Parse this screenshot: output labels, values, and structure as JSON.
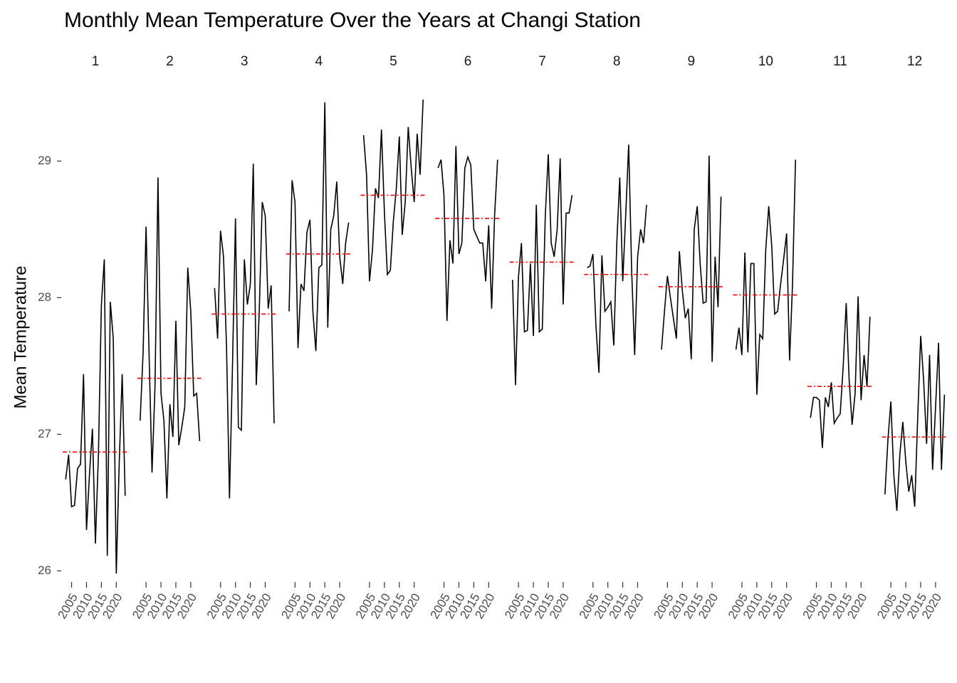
{
  "chart_data": {
    "type": "line",
    "title": "Monthly Mean Temperature Over the Years at Changi Station",
    "y_label": "Mean Temperature",
    "x": [
      2003,
      2004,
      2005,
      2006,
      2007,
      2008,
      2009,
      2010,
      2011,
      2012,
      2013,
      2014,
      2015,
      2016,
      2017,
      2018,
      2019,
      2020,
      2021,
      2022,
      2023
    ],
    "xlim": [
      2002,
      2024
    ],
    "xticks": [
      2005,
      2010,
      2015,
      2020
    ],
    "ylim": [
      25.95,
      29.45
    ],
    "yticks": [
      26,
      27,
      28,
      29
    ],
    "line_color": "#000000",
    "mean_color": "#ff0000",
    "facets": [
      {
        "label": "1",
        "mean": 26.87,
        "values": [
          26.67,
          26.85,
          26.47,
          26.48,
          26.75,
          26.78,
          27.44,
          26.3,
          26.7,
          27.04,
          26.2,
          26.85,
          27.95,
          28.28,
          26.11,
          27.97,
          27.7,
          25.98,
          26.8,
          27.44,
          26.55
        ]
      },
      {
        "label": "2",
        "mean": 27.41,
        "values": [
          27.1,
          27.6,
          28.52,
          27.6,
          26.72,
          27.35,
          28.88,
          27.3,
          27.1,
          26.53,
          27.22,
          26.98,
          27.83,
          26.92,
          27.05,
          27.2,
          28.22,
          27.9,
          27.28,
          27.3,
          26.95
        ]
      },
      {
        "label": "3",
        "mean": 27.88,
        "values": [
          28.07,
          27.7,
          28.49,
          28.3,
          27.65,
          26.53,
          27.5,
          28.58,
          27.05,
          27.03,
          28.28,
          27.95,
          28.1,
          28.98,
          27.36,
          27.9,
          28.7,
          28.6,
          27.92,
          28.09,
          27.08
        ]
      },
      {
        "label": "4",
        "mean": 28.32,
        "values": [
          27.9,
          28.86,
          28.7,
          27.63,
          28.1,
          28.05,
          28.48,
          28.57,
          27.9,
          27.61,
          28.22,
          28.24,
          29.43,
          27.78,
          28.5,
          28.6,
          28.85,
          28.3,
          28.1,
          28.4,
          28.55
        ]
      },
      {
        "label": "5",
        "mean": 28.75,
        "values": [
          29.19,
          28.9,
          28.12,
          28.35,
          28.8,
          28.73,
          29.23,
          28.62,
          28.17,
          28.2,
          28.56,
          28.8,
          29.18,
          28.46,
          28.7,
          29.25,
          28.95,
          28.7,
          29.2,
          28.9,
          29.45
        ]
      },
      {
        "label": "6",
        "mean": 28.58,
        "values": [
          28.95,
          29.01,
          28.75,
          27.83,
          28.42,
          28.25,
          29.11,
          28.32,
          28.4,
          28.95,
          29.03,
          28.97,
          28.5,
          28.45,
          28.4,
          28.4,
          28.12,
          28.53,
          27.92,
          28.6,
          29.01
        ]
      },
      {
        "label": "7",
        "mean": 28.26,
        "values": [
          28.13,
          27.36,
          28.15,
          28.4,
          27.75,
          27.76,
          28.25,
          27.72,
          28.68,
          27.75,
          27.77,
          28.6,
          29.05,
          28.4,
          28.3,
          28.5,
          29.02,
          27.95,
          28.62,
          28.62,
          28.75
        ]
      },
      {
        "label": "8",
        "mean": 28.17,
        "values": [
          28.22,
          28.23,
          28.32,
          27.8,
          27.45,
          28.31,
          27.9,
          27.93,
          27.97,
          27.65,
          28.4,
          28.88,
          28.12,
          28.6,
          29.12,
          28.2,
          27.58,
          28.3,
          28.5,
          28.4,
          28.68
        ]
      },
      {
        "label": "9",
        "mean": 28.08,
        "values": [
          27.62,
          27.9,
          28.16,
          28.0,
          27.85,
          27.7,
          28.34,
          28.05,
          27.85,
          27.92,
          27.55,
          28.5,
          28.67,
          28.25,
          27.96,
          27.97,
          29.04,
          27.53,
          28.3,
          27.93,
          28.74
        ]
      },
      {
        "label": "10",
        "mean": 28.02,
        "values": [
          27.62,
          27.78,
          27.58,
          28.33,
          27.6,
          28.25,
          28.25,
          27.29,
          27.73,
          27.7,
          28.35,
          28.67,
          28.38,
          27.88,
          27.9,
          28.1,
          28.28,
          28.47,
          27.54,
          28.1,
          29.01
        ]
      },
      {
        "label": "11",
        "mean": 27.35,
        "values": [
          27.12,
          27.27,
          27.27,
          27.25,
          26.9,
          27.27,
          27.2,
          27.38,
          27.08,
          27.12,
          27.15,
          27.5,
          27.96,
          27.4,
          27.07,
          27.3,
          28.01,
          27.25,
          27.58,
          27.35,
          27.86
        ]
      },
      {
        "label": "12",
        "mean": 26.98,
        "values": [
          26.56,
          26.96,
          27.24,
          26.7,
          26.44,
          26.85,
          27.09,
          26.8,
          26.58,
          26.7,
          26.47,
          27.12,
          27.72,
          27.4,
          26.93,
          27.58,
          26.74,
          27.2,
          27.67,
          26.74,
          27.29
        ]
      }
    ]
  }
}
